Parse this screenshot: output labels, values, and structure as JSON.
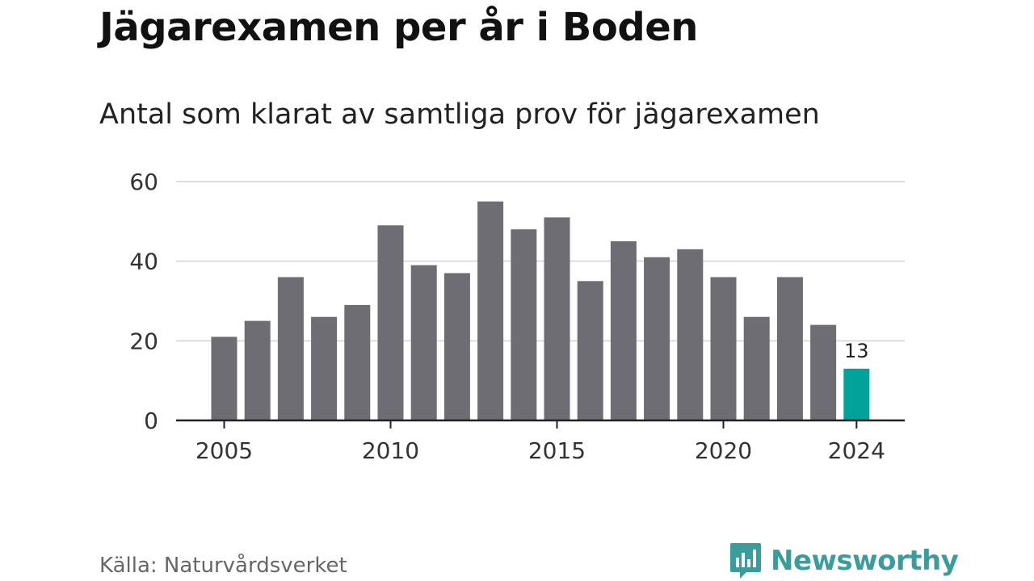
{
  "chart_data": {
    "type": "bar",
    "title": "Jägarexamen per år i Boden",
    "subtitle": "Antal som klarat av samtliga prov för jägarexamen",
    "source": "Källa: Naturvårdsverket",
    "x": [
      2005,
      2006,
      2007,
      2008,
      2009,
      2010,
      2011,
      2012,
      2013,
      2014,
      2015,
      2016,
      2017,
      2018,
      2019,
      2020,
      2021,
      2022,
      2023,
      2024
    ],
    "values": [
      21,
      25,
      36,
      26,
      29,
      49,
      39,
      37,
      55,
      48,
      51,
      35,
      45,
      41,
      43,
      36,
      26,
      36,
      24,
      13
    ],
    "x_ticks": [
      2005,
      2010,
      2015,
      2020,
      2024
    ],
    "y_ticks": [
      0,
      20,
      40,
      60
    ],
    "ylim": [
      0,
      60
    ],
    "highlight_index": 19,
    "highlight_label": "13",
    "grid": true,
    "colors": {
      "bar": "#6e6d73",
      "highlight": "#00a29a",
      "grid": "#dddddd",
      "axis": "#222222"
    }
  },
  "brand": {
    "name": "Newsworthy",
    "color": "#3a9c9c",
    "icon": "newsworthy-logo-icon"
  }
}
